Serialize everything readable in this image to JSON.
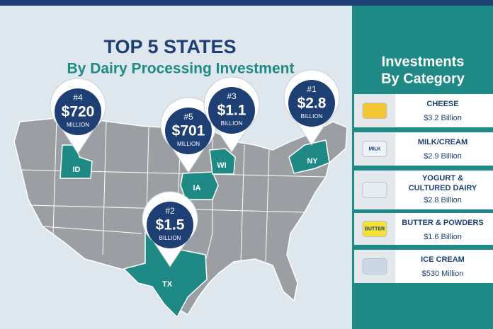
{
  "header": {
    "title": "TOP 5 STATES",
    "subtitle": "By Dairy Processing Investment"
  },
  "pins": [
    {
      "rank": "#4",
      "amount": "$720",
      "unit": "MILLION",
      "state": "ID"
    },
    {
      "rank": "#5",
      "amount": "$701",
      "unit": "MILLION",
      "state": "IA"
    },
    {
      "rank": "#3",
      "amount": "$1.1",
      "unit": "BILLION",
      "state": "WI"
    },
    {
      "rank": "#1",
      "amount": "$2.8",
      "unit": "BILLION",
      "state": "NY"
    },
    {
      "rank": "#2",
      "amount": "$1.5",
      "unit": "BILLION",
      "state": "TX"
    }
  ],
  "sidebar": {
    "title_lines": [
      "Investments",
      "By Category"
    ],
    "categories": [
      {
        "name": "CHEESE",
        "amount": "$3.2 Billion"
      },
      {
        "name": "MILK/CREAM",
        "amount": "$2.9 Billion",
        "icon_label": "MILK"
      },
      {
        "name": "YOGURT &",
        "name2": "CULTURED DAIRY",
        "amount": "$2.8 Billion"
      },
      {
        "name": "BUTTER & POWDERS",
        "amount": "$1.6 Billion",
        "icon_label": "BUTTER"
      },
      {
        "name": "ICE CREAM",
        "amount": "$530 Million"
      }
    ]
  }
}
